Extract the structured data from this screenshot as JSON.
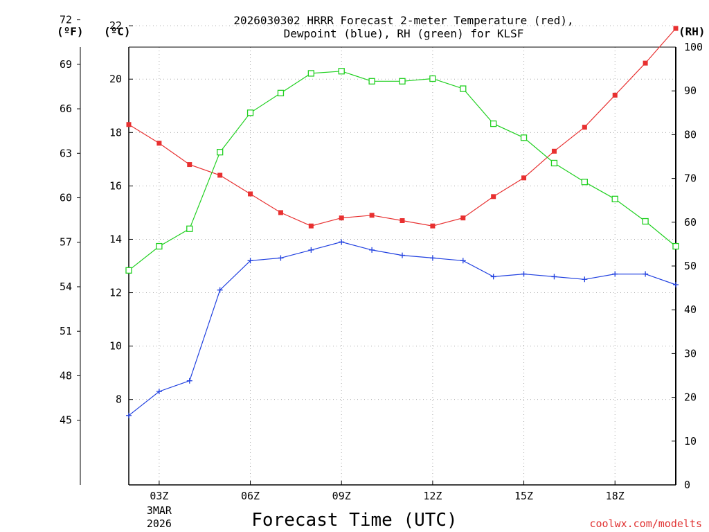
{
  "chart_data": {
    "type": "line",
    "title_line1": "2026030302 HRRR Forecast 2-meter Temperature (red),",
    "title_line2": "Dewpoint (blue), RH (green) for KLSF",
    "xlabel": "Forecast Time (UTC)",
    "credit": "coolwx.com/modelts",
    "axis_units": {
      "fahrenheit": "(ºF)",
      "celsius": "(ºC)",
      "rh": "(RH)"
    },
    "x_hours": [
      2,
      3,
      4,
      5,
      6,
      7,
      8,
      9,
      10,
      11,
      12,
      13,
      14,
      15,
      16,
      17,
      18,
      19,
      20
    ],
    "x_ticks": [
      {
        "hour": 3,
        "label": "03Z",
        "sub1": "3MAR",
        "sub2": "2026"
      },
      {
        "hour": 6,
        "label": "06Z"
      },
      {
        "hour": 9,
        "label": "09Z"
      },
      {
        "hour": 12,
        "label": "12Z"
      },
      {
        "hour": 15,
        "label": "15Z"
      },
      {
        "hour": 18,
        "label": "18Z"
      }
    ],
    "xlim": [
      2,
      20
    ],
    "celsius_range": [
      4.8,
      21.2
    ],
    "celsius_ticks": [
      8,
      10,
      12,
      14,
      16,
      18,
      20,
      22
    ],
    "fahrenheit_ticks": [
      45,
      48,
      51,
      54,
      57,
      60,
      63,
      66,
      69,
      72
    ],
    "rh_range": [
      0,
      100
    ],
    "rh_ticks": [
      0,
      10,
      20,
      30,
      40,
      50,
      60,
      70,
      80,
      90,
      100
    ],
    "series": [
      {
        "name": "2-meter Temperature",
        "axis": "celsius",
        "color": "#e83030",
        "marker": "filled-square",
        "values": [
          18.3,
          17.6,
          16.8,
          16.4,
          15.7,
          15.0,
          14.5,
          14.8,
          14.9,
          14.7,
          14.5,
          14.8,
          15.6,
          16.3,
          17.3,
          18.2,
          19.4,
          20.6,
          21.9
        ]
      },
      {
        "name": "Dewpoint",
        "axis": "celsius",
        "color": "#2040e0",
        "marker": "plus",
        "values": [
          7.4,
          8.3,
          8.7,
          12.1,
          13.2,
          13.3,
          13.6,
          13.9,
          13.6,
          13.4,
          13.3,
          13.2,
          12.6,
          12.7,
          12.6,
          12.5,
          12.7,
          12.7,
          12.3
        ]
      },
      {
        "name": "RH",
        "axis": "rh",
        "color": "#20d020",
        "marker": "open-square",
        "values": [
          49,
          54.5,
          58.5,
          76,
          85,
          89.5,
          94,
          94.5,
          92.2,
          92.2,
          92.8,
          90.5,
          82.5,
          79.3,
          73.5,
          69.2,
          65.3,
          60.2,
          54.5
        ]
      }
    ]
  }
}
